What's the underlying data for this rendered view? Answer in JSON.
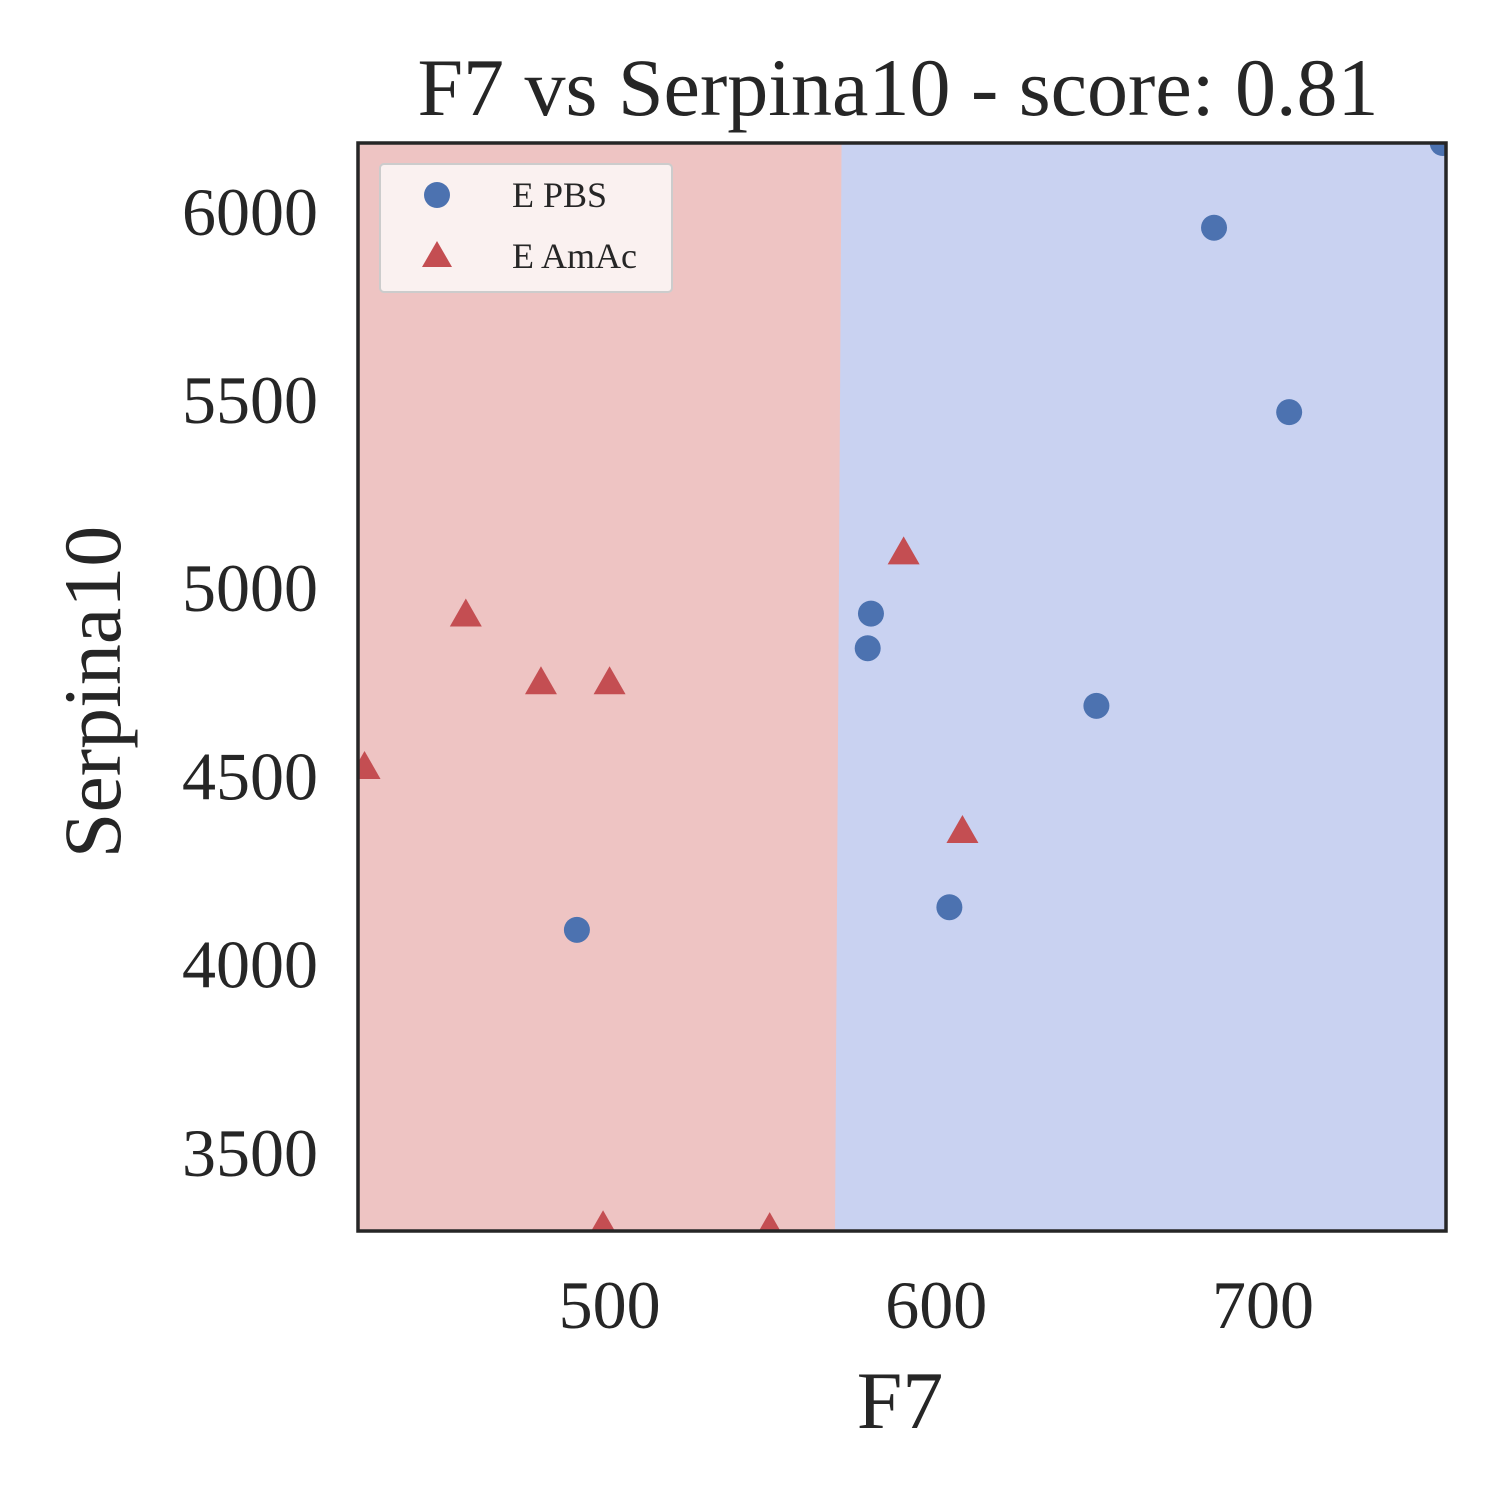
{
  "chart_data": {
    "type": "scatter",
    "title": "F7 vs Serpina10 - score: 0.81",
    "xlabel": "F7",
    "ylabel": "Serpina10",
    "xlim": [
      423,
      756
    ],
    "ylim": [
      3290,
      6180
    ],
    "xticks": [
      500,
      600,
      700
    ],
    "yticks": [
      3500,
      4000,
      4500,
      5000,
      5500,
      6000
    ],
    "grid": false,
    "legend_position": "top-left",
    "decision_regions": [
      {
        "class": "E AmAc",
        "color": "#eec4c3",
        "x_boundary_at_ymin": 569,
        "x_boundary_at_ymax": 571
      },
      {
        "class": "E PBS",
        "color": "#c9d2f1"
      }
    ],
    "series": [
      {
        "name": "E PBS",
        "marker": "circle",
        "color": "#4c72b0",
        "points": [
          [
            755,
            6180
          ],
          [
            685,
            5955
          ],
          [
            708,
            5465
          ],
          [
            580,
            4930
          ],
          [
            579,
            4838
          ],
          [
            649,
            4685
          ],
          [
            604,
            4150
          ],
          [
            490,
            4090
          ]
        ]
      },
      {
        "name": "E AmAc",
        "marker": "triangle",
        "color": "#c44e52",
        "points": [
          [
            590,
            5090
          ],
          [
            456,
            4925
          ],
          [
            479,
            4745
          ],
          [
            500,
            4745
          ],
          [
            425,
            4520
          ],
          [
            608,
            4350
          ],
          [
            498,
            3300
          ],
          [
            549,
            3295
          ]
        ]
      }
    ]
  }
}
